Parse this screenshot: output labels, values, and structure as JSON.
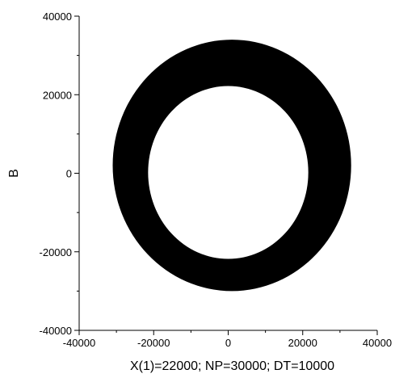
{
  "chart_data": {
    "type": "scatter",
    "title": "",
    "xlabel": "X(1)=22000; NP=30000; DT=10000",
    "ylabel": "B",
    "xlim": [
      -40000,
      40000
    ],
    "ylim": [
      -40000,
      40000
    ],
    "x_ticks": [
      -40000,
      -20000,
      0,
      20000,
      40000
    ],
    "y_ticks": [
      40000,
      20000,
      0,
      -20000,
      -40000
    ],
    "x_tick_labels": [
      "-40000",
      "-20000",
      "0",
      "20000",
      "40000"
    ],
    "y_tick_labels": [
      "40000",
      "20000",
      "0",
      "-20000",
      "-40000"
    ],
    "grid": false,
    "legend": "none",
    "marker_color": "#000000",
    "ring": {
      "outer": {
        "center": [
          1000,
          2000
        ],
        "radius_x": 32000,
        "radius_y": 32000
      },
      "inner": {
        "center": [
          0,
          200
        ],
        "radius_x": 21500,
        "radius_y": 22000
      }
    }
  }
}
